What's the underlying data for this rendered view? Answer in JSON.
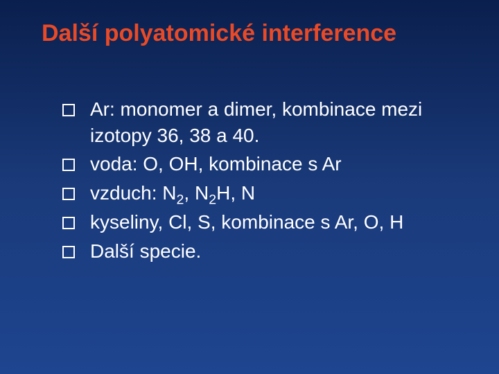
{
  "slide": {
    "title": "Další polyatomické interference",
    "title_color": "#e84a27",
    "title_fontsize": 34,
    "background_gradient": [
      "#0a1f4d",
      "#1a3a7a",
      "#1e4590"
    ],
    "text_color": "#ffffff",
    "body_fontsize": 28,
    "font_family": "Comic Sans MS",
    "bullet_marker": "hollow-square",
    "bullet_border_color": "#ffffff",
    "bullets": [
      {
        "text": "Ar: monomer a dimer, kombinace mezi izotopy 36, 38 a 40."
      },
      {
        "text": "voda: O, OH, kombinace s Ar"
      },
      {
        "html": "vzduch: N<sub>2</sub>, N<sub>2</sub>H, N"
      },
      {
        "text": "kyseliny, Cl, S, kombinace s Ar, O, H"
      },
      {
        "text": "Další specie."
      }
    ]
  }
}
